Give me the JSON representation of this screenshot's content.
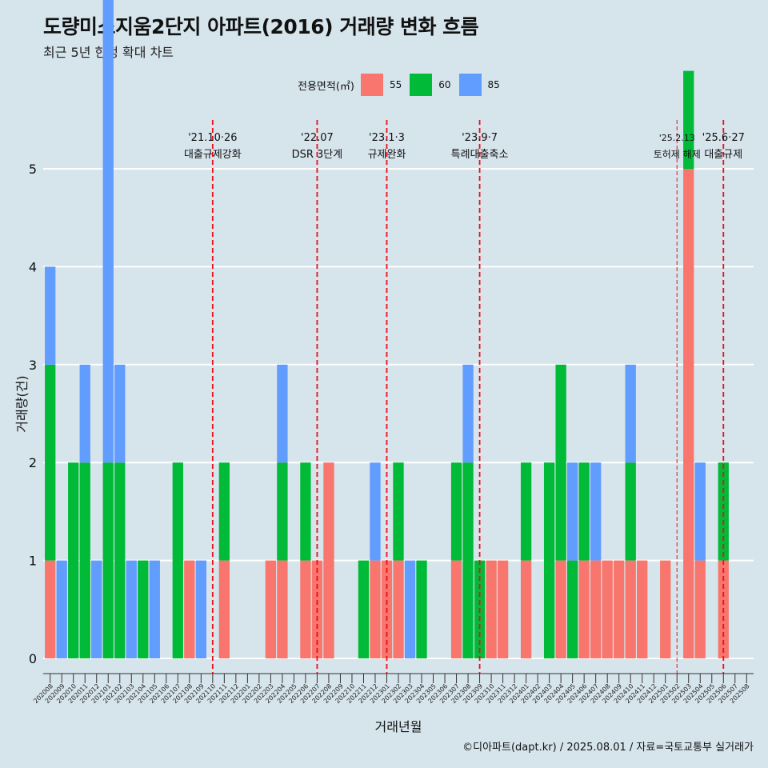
{
  "title": "도량미소지움2단지 아파트(2016) 거래량 변화 흐름",
  "subtitle": "최근 5년 한정 확대 차트",
  "caption": "©디아파트(dapt.kr) / 2025.08.01 / 자료=국토교통부 실거래가",
  "legend": {
    "title": "전용면적(㎡)",
    "items": [
      {
        "label": "55",
        "color": "#f8766d"
      },
      {
        "label": "60",
        "color": "#00ba38"
      },
      {
        "label": "85",
        "color": "#619cff"
      }
    ]
  },
  "chart_data": {
    "type": "bar",
    "title": "도량미소지움2단지 아파트(2016) 거래량 변화 흐름",
    "subtitle": "최근 5년 한정 확대 차트",
    "xlabel": "거래년월",
    "ylabel": "거래량(건)",
    "ylim": [
      0,
      5
    ],
    "yticks": [
      0,
      1,
      2,
      3,
      4,
      5
    ],
    "grid": true,
    "legend_position": "top",
    "categories": [
      "202008",
      "202009",
      "202010",
      "202011",
      "202012",
      "202101",
      "202102",
      "202103",
      "202104",
      "202105",
      "202106",
      "202107",
      "202108",
      "202109",
      "202110",
      "202111",
      "202112",
      "202201",
      "202202",
      "202203",
      "202204",
      "202205",
      "202206",
      "202207",
      "202208",
      "202209",
      "202210",
      "202211",
      "202212",
      "202301",
      "202302",
      "202303",
      "202304",
      "202305",
      "202306",
      "202307",
      "202308",
      "202309",
      "202310",
      "202311",
      "202312",
      "202401",
      "202402",
      "202403",
      "202404",
      "202405",
      "202406",
      "202407",
      "202408",
      "202409",
      "202410",
      "202411",
      "202412",
      "202501",
      "202502",
      "202503",
      "202504",
      "202505",
      "202506",
      "202507",
      "202508"
    ],
    "series": [
      {
        "name": "55",
        "color": "#f8766d",
        "values": [
          1,
          0,
          0,
          0,
          0,
          0,
          0,
          0,
          0,
          0,
          0,
          0,
          1,
          0,
          0,
          1,
          0,
          0,
          0,
          1,
          1,
          0,
          1,
          1,
          2,
          0,
          0,
          0,
          1,
          1,
          1,
          0,
          0,
          0,
          0,
          1,
          0,
          0,
          1,
          1,
          0,
          1,
          0,
          0,
          1,
          0,
          1,
          1,
          1,
          1,
          1,
          1,
          0,
          1,
          0,
          5,
          1,
          0,
          1,
          0,
          0
        ]
      },
      {
        "name": "60",
        "color": "#00ba38",
        "values": [
          2,
          0,
          2,
          2,
          0,
          2,
          2,
          0,
          1,
          0,
          0,
          2,
          0,
          0,
          0,
          1,
          0,
          0,
          0,
          0,
          1,
          0,
          1,
          0,
          0,
          0,
          0,
          1,
          0,
          0,
          1,
          0,
          1,
          0,
          0,
          1,
          2,
          1,
          0,
          0,
          0,
          1,
          0,
          2,
          2,
          1,
          1,
          0,
          0,
          0,
          1,
          0,
          0,
          0,
          0,
          1,
          0,
          0,
          1,
          0,
          0
        ]
      },
      {
        "name": "85",
        "color": "#619cff",
        "values": [
          1,
          1,
          0,
          1,
          1,
          5,
          1,
          1,
          0,
          1,
          0,
          0,
          0,
          1,
          0,
          0,
          0,
          0,
          0,
          0,
          1,
          0,
          0,
          0,
          0,
          0,
          0,
          0,
          1,
          0,
          0,
          1,
          0,
          0,
          0,
          0,
          1,
          0,
          0,
          0,
          0,
          0,
          0,
          0,
          0,
          1,
          0,
          1,
          0,
          0,
          1,
          0,
          0,
          0,
          0,
          0,
          1,
          0,
          0,
          0,
          0
        ]
      }
    ],
    "annotations": [
      {
        "x": "202110",
        "line1": "'21.10·26",
        "line2": "대출규제강화",
        "style": "dashed"
      },
      {
        "x": "202207",
        "line1": "'22.07",
        "line2": "DSR 3단계",
        "style": "dashed"
      },
      {
        "x": "202301",
        "line1": "'23.1·3",
        "line2": "규제완화",
        "style": "dashed"
      },
      {
        "x": "202309",
        "line1": "'23.9·7",
        "line2": "특례대출축소",
        "style": "dashed"
      },
      {
        "x": "202502",
        "line1": "'25.2.13",
        "line2": "토허제 해제",
        "style": "thin"
      },
      {
        "x": "202506",
        "line1": "'25.6·27",
        "line2": "대출규제",
        "style": "dashed"
      }
    ]
  }
}
